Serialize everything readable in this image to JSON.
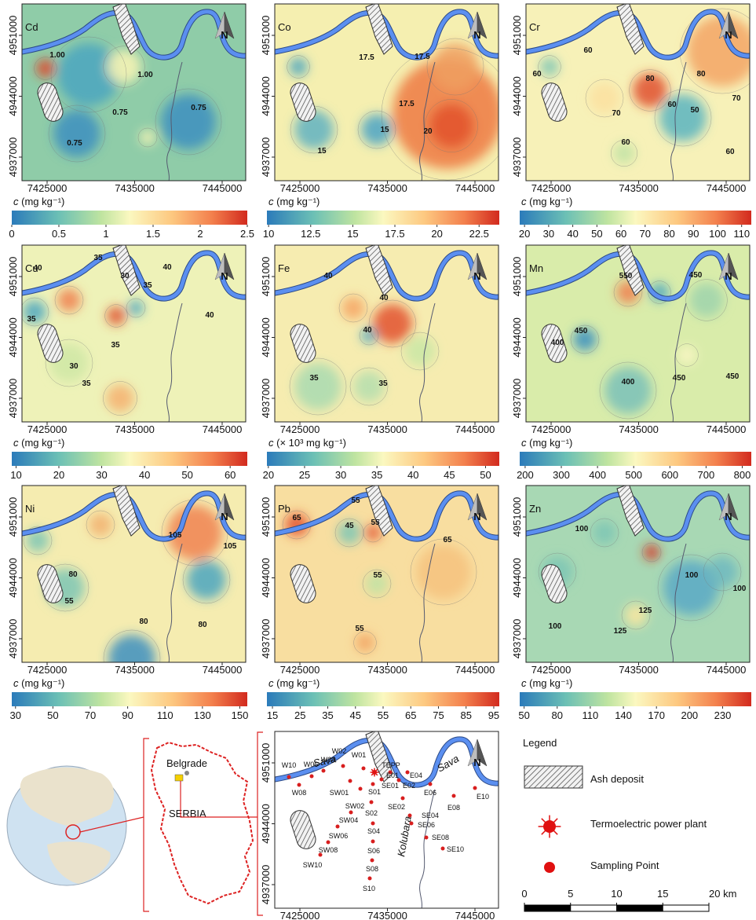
{
  "axes": {
    "xlim": [
      7422130,
      7447690
    ],
    "ylim": [
      4934288,
      4954613
    ],
    "xticks": [
      7425000,
      7435000,
      7445000
    ],
    "yticks": [
      4937000,
      4944000,
      4951000
    ]
  },
  "north_label": "N",
  "panels": [
    {
      "element": "Cd",
      "colorbar": {
        "symbol": "c",
        "unit": " (mg kg⁻¹)",
        "range": [
          0,
          2.5
        ],
        "ticks": [
          0,
          0.5,
          1,
          1.5,
          2,
          2.5
        ]
      },
      "contour_labels": [
        "1.00",
        "1.00",
        "0.75",
        "0.75",
        "0.75"
      ]
    },
    {
      "element": "Co",
      "colorbar": {
        "symbol": "c",
        "unit": " (mg kg⁻¹)",
        "range": [
          9.9,
          23.7
        ],
        "ticks": [
          10,
          12.5,
          15,
          17.5,
          20,
          22.5
        ]
      },
      "contour_labels": [
        "17.5",
        "17.5",
        "17.5",
        "15",
        "20",
        "15"
      ]
    },
    {
      "element": "Cr",
      "colorbar": {
        "symbol": "c",
        "unit": " (mg kg⁻¹)",
        "range": [
          18,
          114
        ],
        "ticks": [
          20,
          30,
          40,
          50,
          60,
          70,
          80,
          90,
          100,
          110
        ]
      },
      "contour_labels": [
        "60",
        "60",
        "80",
        "80",
        "70",
        "60",
        "50",
        "70",
        "60",
        "60"
      ]
    },
    {
      "element": "Cu",
      "colorbar": {
        "symbol": "c",
        "unit": " (mg kg⁻¹)",
        "range": [
          9,
          64
        ],
        "ticks": [
          10,
          20,
          30,
          40,
          50,
          60
        ]
      },
      "contour_labels": [
        "35",
        "40",
        "30",
        "40",
        "35",
        "40",
        "35",
        "35",
        "30",
        "35"
      ]
    },
    {
      "element": "Fe",
      "colorbar": {
        "symbol": "c",
        "unit": " (× 10³ mg kg⁻¹)",
        "range": [
          19.8,
          51.9
        ],
        "ticks": [
          20,
          25,
          30,
          35,
          40,
          45,
          50
        ]
      },
      "contour_labels": [
        "40",
        "40",
        "40",
        "35",
        "35"
      ]
    },
    {
      "element": "Mn",
      "colorbar": {
        "symbol": "c",
        "unit": " (mg kg⁻¹)",
        "range": [
          185,
          825
        ],
        "ticks": [
          200,
          300,
          400,
          500,
          600,
          700,
          800
        ]
      },
      "contour_labels": [
        "550",
        "450",
        "450",
        "400",
        "400",
        "450",
        "450"
      ]
    },
    {
      "element": "Ni",
      "colorbar": {
        "symbol": "c",
        "unit": " (mg kg⁻¹)",
        "range": [
          28,
          154
        ],
        "ticks": [
          30,
          50,
          70,
          90,
          110,
          130,
          150
        ]
      },
      "contour_labels": [
        "105",
        "105",
        "80",
        "55",
        "80",
        "80"
      ]
    },
    {
      "element": "Pb",
      "colorbar": {
        "symbol": "c",
        "unit": " (mg kg⁻¹)",
        "range": [
          13,
          97
        ],
        "ticks": [
          15,
          25,
          35,
          45,
          55,
          65,
          75,
          85,
          95
        ]
      },
      "contour_labels": [
        "55",
        "65",
        "45",
        "55",
        "65",
        "55",
        "55"
      ]
    },
    {
      "element": "Zn",
      "colorbar": {
        "symbol": "c",
        "unit": " (mg kg⁻¹)",
        "range": [
          46,
          256
        ],
        "ticks": [
          50,
          80,
          110,
          140,
          170,
          200,
          230
        ]
      },
      "contour_labels": [
        "100",
        "100",
        "100",
        "125",
        "125",
        "100"
      ]
    }
  ],
  "location": {
    "city": "Belgrade",
    "country": "SERBIA"
  },
  "sampling_map": {
    "rivers": [
      "Sava",
      "Sava",
      "Kolubara"
    ],
    "plant": "TEPP",
    "points": [
      "W10",
      "W08",
      "W06",
      "W04",
      "W02",
      "W01",
      "SW01",
      "SW02",
      "S01",
      "SE01",
      "E01",
      "E02",
      "E04",
      "S02",
      "SE02",
      "SW04",
      "SW06",
      "S04",
      "SE04",
      "SE06",
      "E06",
      "E08",
      "E10",
      "SW08",
      "SW10",
      "S06",
      "SE08",
      "SE10",
      "S08",
      "S10"
    ]
  },
  "legend": {
    "title": "Legend",
    "items": [
      "Ash deposit",
      "Termoelectric power plant",
      "Sampling Point"
    ]
  },
  "scale_bar": {
    "ticks": [
      0,
      5,
      10,
      15,
      {
        "value": 20,
        "label": "20 km"
      }
    ]
  }
}
